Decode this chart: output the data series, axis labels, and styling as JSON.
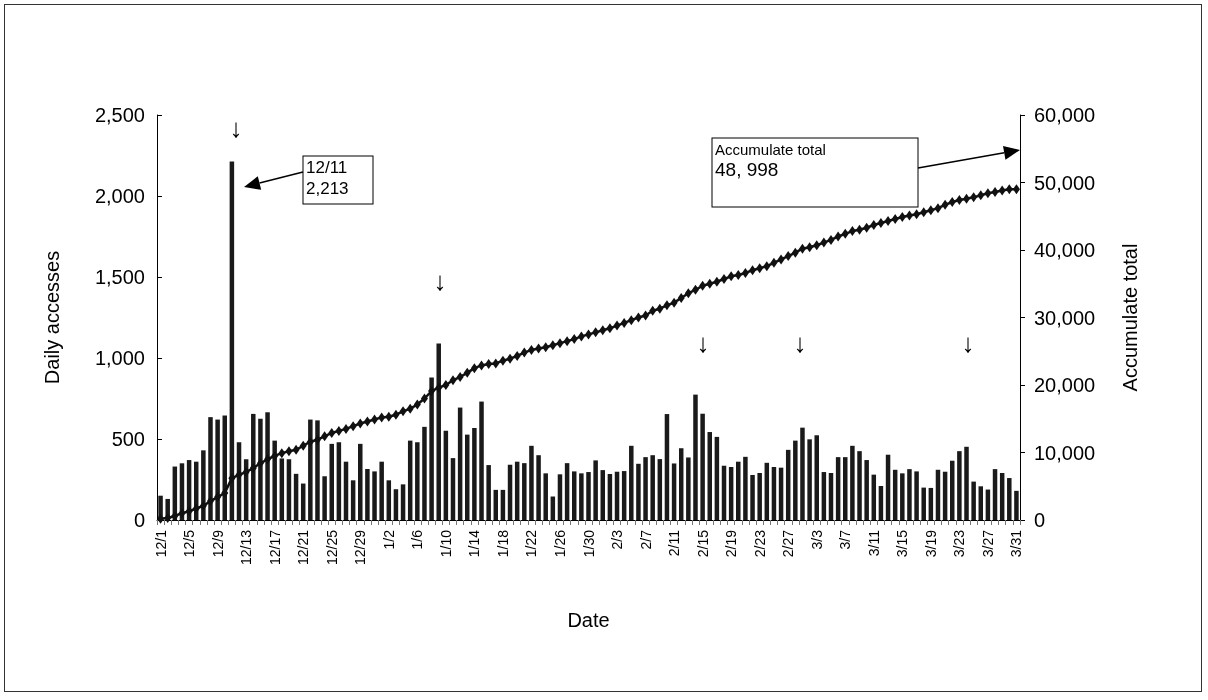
{
  "chart_data": {
    "type": "bar",
    "xlabel": "Date",
    "ylabel": "Daily accesses",
    "y2label": "Accumulate total",
    "categories": [
      "12/1",
      null,
      null,
      null,
      "12/5",
      null,
      null,
      null,
      "12/9",
      null,
      null,
      null,
      "12/13",
      null,
      null,
      null,
      "12/17",
      null,
      null,
      null,
      "12/21",
      null,
      null,
      null,
      "12/25",
      null,
      null,
      null,
      "12/29",
      null,
      null,
      null,
      "1/2",
      null,
      null,
      null,
      "1/6",
      null,
      null,
      null,
      "1/10",
      null,
      null,
      null,
      "1/14",
      null,
      null,
      null,
      "1/18",
      null,
      null,
      null,
      "1/22",
      null,
      null,
      null,
      "1/26",
      null,
      null,
      null,
      "1/30",
      null,
      null,
      null,
      "2/3",
      null,
      null,
      null,
      "2/7",
      null,
      null,
      null,
      "2/11",
      null,
      null,
      null,
      "2/15",
      null,
      null,
      null,
      "2/19",
      null,
      null,
      null,
      "2/23",
      null,
      null,
      null,
      "2/27",
      null,
      null,
      null,
      "3/3",
      null,
      null,
      null,
      "3/7",
      null,
      null,
      null,
      "3/11",
      null,
      null,
      null,
      "3/15",
      null,
      null,
      null,
      "3/19",
      null,
      null,
      null,
      "3/23",
      null,
      null,
      null,
      "3/27",
      null,
      null,
      null,
      "3/31"
    ],
    "ylim": [
      0,
      2500
    ],
    "yticks": [
      {
        "value": 0,
        "label": "0"
      },
      {
        "value": 500,
        "label": "500"
      },
      {
        "value": 1000,
        "label": "1,000"
      },
      {
        "value": 1500,
        "label": "1,500"
      },
      {
        "value": 2000,
        "label": "2,000"
      },
      {
        "value": 2500,
        "label": "2,500"
      }
    ],
    "y2lim": [
      0,
      60000
    ],
    "y2ticks": [
      {
        "value": 0,
        "label": "0"
      },
      {
        "value": 10000,
        "label": "10,000"
      },
      {
        "value": 20000,
        "label": "20,000"
      },
      {
        "value": 30000,
        "label": "30,000"
      },
      {
        "value": 40000,
        "label": "40,000"
      },
      {
        "value": 50000,
        "label": "50,000"
      },
      {
        "value": 60000,
        "label": "60,000"
      }
    ],
    "grid": false,
    "marker": "diamond",
    "line_style": "solid",
    "series": [
      {
        "color": "#1a1a1a",
        "values": [
          150,
          130,
          330,
          350,
          370,
          360,
          430,
          635,
          620,
          645,
          2213,
          480,
          375,
          655,
          625,
          665,
          490,
          380,
          375,
          285,
          225,
          620,
          615,
          270,
          470,
          480,
          360,
          245,
          470,
          315,
          300,
          360,
          245,
          190,
          220,
          490,
          480,
          575,
          880,
          1090,
          551,
          382,
          694,
          527,
          568,
          731,
          339,
          186,
          186,
          341,
          360,
          351,
          458,
          400,
          288,
          145,
          282,
          351,
          300,
          288,
          296,
          368,
          308,
          284,
          298,
          302,
          458,
          347,
          388,
          400,
          376,
          654,
          349,
          443,
          386,
          774,
          656,
          543,
          513,
          335,
          327,
          360,
          390,
          278,
          290,
          353,
          327,
          323,
          433,
          490,
          570,
          498,
          523,
          296,
          290,
          388,
          388,
          458,
          425,
          370,
          280,
          210,
          403,
          310,
          288,
          314,
          300,
          200,
          198,
          310,
          298,
          366,
          425,
          452,
          237,
          208,
          188,
          314,
          290,
          259,
          180
        ]
      },
      {
        "type": "line",
        "axis": "y2",
        "color": "#111111",
        "values": [
          200,
          300,
          600,
          1000,
          1300,
          1700,
          2100,
          2800,
          3400,
          4000,
          6200,
          6700,
          7100,
          7700,
          8400,
          9000,
          9500,
          9900,
          10200,
          10400,
          11000,
          11600,
          11900,
          12400,
          12900,
          13200,
          13500,
          13900,
          14300,
          14600,
          14900,
          15200,
          15300,
          15600,
          16100,
          16500,
          17100,
          18000,
          19100,
          19600,
          20000,
          20700,
          21200,
          21800,
          22500,
          22900,
          23100,
          23200,
          23600,
          23900,
          24300,
          24800,
          25200,
          25400,
          25600,
          25900,
          26200,
          26500,
          26800,
          27200,
          27500,
          27800,
          28100,
          28400,
          28800,
          29200,
          29600,
          30000,
          30300,
          31000,
          31300,
          31800,
          32200,
          32900,
          33600,
          34100,
          34700,
          35000,
          35300,
          35700,
          36100,
          36300,
          36600,
          37000,
          37300,
          37600,
          38100,
          38600,
          39100,
          39600,
          40200,
          40400,
          40700,
          41100,
          41500,
          42000,
          42400,
          42800,
          43000,
          43300,
          43700,
          44000,
          44300,
          44600,
          44900,
          45100,
          45300,
          45600,
          45900,
          46200,
          46700,
          47100,
          47400,
          47600,
          47800,
          48100,
          48400,
          48600,
          48800,
          49000,
          49000
        ]
      }
    ],
    "annotations": [
      "↓",
      "↓",
      "↓",
      "↓",
      "↓",
      "12/11\n2,213",
      "Accumulate total\n48, 998"
    ]
  }
}
